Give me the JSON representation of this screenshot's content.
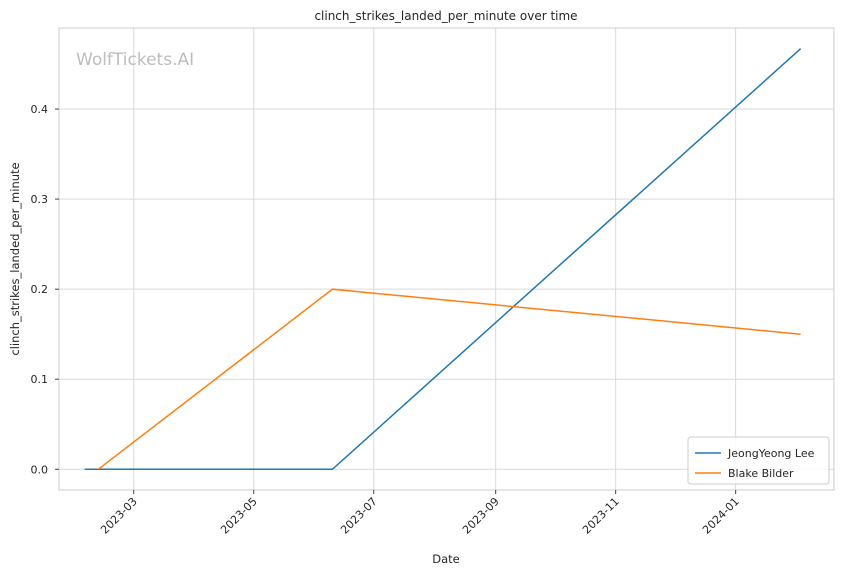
{
  "chart_data": {
    "type": "line",
    "title": "clinch_strikes_landed_per_minute over time",
    "xlabel": "Date",
    "ylabel": "clinch_strikes_landed_per_minute",
    "watermark": "WolfTickets.AI",
    "x_ticks": [
      "2023-03",
      "2023-05",
      "2023-07",
      "2023-09",
      "2023-11",
      "2024-01"
    ],
    "y_ticks": [
      "0.0",
      "0.1",
      "0.2",
      "0.3",
      "0.4"
    ],
    "xlim": [
      "2023-01-22",
      "2024-02-20"
    ],
    "ylim": [
      -0.023,
      0.49
    ],
    "grid": true,
    "legend_position": "lower right",
    "series": [
      {
        "name": "JeongYeong Lee",
        "color": "#1f77b4",
        "points": [
          {
            "x": "2023-02-04",
            "y": 0.0
          },
          {
            "x": "2023-06-10",
            "y": 0.0
          },
          {
            "x": "2024-02-03",
            "y": 0.467
          }
        ]
      },
      {
        "name": "Blake Bilder",
        "color": "#ff7f0e",
        "points": [
          {
            "x": "2023-02-11",
            "y": 0.0
          },
          {
            "x": "2023-06-10",
            "y": 0.2
          },
          {
            "x": "2024-02-03",
            "y": 0.15
          }
        ]
      }
    ]
  }
}
